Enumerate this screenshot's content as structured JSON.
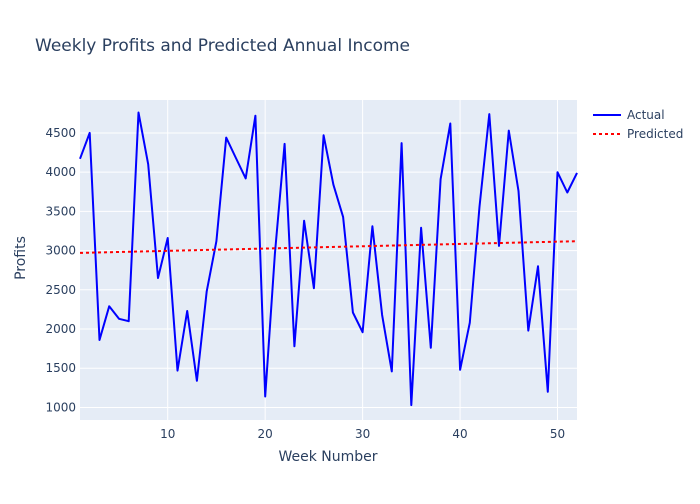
{
  "chart_data": {
    "type": "line",
    "title": "Weekly Profits and Predicted Annual Income",
    "xlabel": "Week Number",
    "ylabel": "Profits",
    "xlim": [
      1,
      52
    ],
    "ylim": [
      840,
      4920
    ],
    "xticks": [
      10,
      20,
      30,
      40,
      50
    ],
    "yticks": [
      1000,
      1500,
      2000,
      2500,
      3000,
      3500,
      4000,
      4500
    ],
    "grid": true,
    "legend_position": "top-right",
    "colors": {
      "plot_bg": "#e5ecf6",
      "grid": "#ffffff",
      "text": "#2a3f5f"
    },
    "series": [
      {
        "name": "Actual",
        "color": "#0000ff",
        "dash": "solid",
        "x": [
          1,
          2,
          3,
          4,
          5,
          6,
          7,
          8,
          9,
          10,
          11,
          12,
          13,
          14,
          15,
          16,
          17,
          18,
          19,
          20,
          21,
          22,
          23,
          24,
          25,
          26,
          27,
          28,
          29,
          30,
          31,
          32,
          33,
          34,
          35,
          36,
          37,
          38,
          39,
          40,
          41,
          42,
          43,
          44,
          45,
          46,
          47,
          48,
          49,
          50,
          51,
          52
        ],
        "y": [
          4170,
          4500,
          1860,
          2290,
          2130,
          2100,
          4760,
          4100,
          2650,
          3160,
          1470,
          2230,
          1340,
          2480,
          3120,
          4440,
          4180,
          3920,
          4720,
          1140,
          2960,
          4360,
          1780,
          3380,
          2520,
          4470,
          3840,
          3430,
          2210,
          1960,
          3310,
          2180,
          1460,
          4370,
          1030,
          3290,
          1760,
          3910,
          4620,
          1480,
          2080,
          3560,
          4740,
          3060,
          4530,
          3760,
          1980,
          2800,
          1200,
          4000,
          3740,
          3990
        ]
      },
      {
        "name": "Predicted",
        "color": "#ff0000",
        "dash": "dot",
        "x": [
          1,
          52
        ],
        "y": [
          2970,
          3120
        ]
      }
    ]
  }
}
